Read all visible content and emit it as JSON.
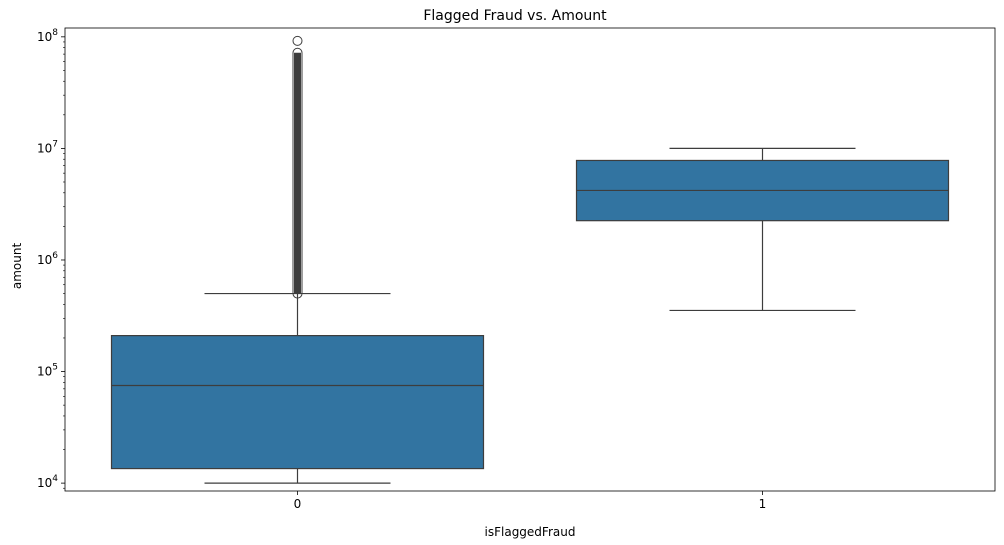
{
  "chart_data": {
    "type": "box",
    "title": "Flagged Fraud vs. Amount",
    "xlabel": "isFlaggedFraud",
    "ylabel": "amount",
    "yscale": "log",
    "ylim": [
      8500,
      120000000
    ],
    "grid": false,
    "legend": "none",
    "categories": [
      "0",
      "1"
    ],
    "y_ticks": [
      {
        "value": 10000,
        "base": "10",
        "exp": "4"
      },
      {
        "value": 100000,
        "base": "10",
        "exp": "5"
      },
      {
        "value": 1000000,
        "base": "10",
        "exp": "6"
      },
      {
        "value": 10000000,
        "base": "10",
        "exp": "7"
      },
      {
        "value": 100000000,
        "base": "10",
        "exp": "8"
      }
    ],
    "boxes": [
      {
        "category": "0",
        "whisker_low": 10000,
        "q1": 13500,
        "median": 75000,
        "q3": 210000,
        "whisker_high": 500000,
        "outliers_range": [
          500000,
          72000000
        ],
        "outlier_max": 92000000
      },
      {
        "category": "1",
        "whisker_low": 353000,
        "q1": 2250000,
        "median": 4200000,
        "q3": 7800000,
        "whisker_high": 10000000
      }
    ],
    "colors": {
      "box_fill": "#3274a1",
      "line": "#3d3d3d",
      "axis": "#000000"
    }
  }
}
